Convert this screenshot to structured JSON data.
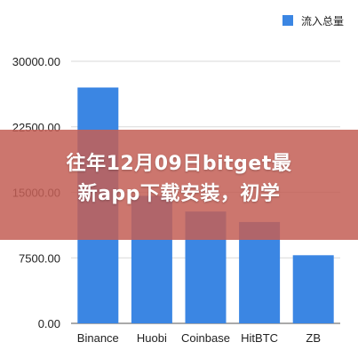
{
  "chart_data": {
    "type": "bar",
    "categories": [
      "Binance",
      "Huobi",
      "Coinbase",
      "HitBTC",
      "ZB"
    ],
    "series": [
      {
        "name": "流入总量",
        "values": [
          27000,
          14600,
          12800,
          11600,
          7800
        ]
      }
    ],
    "yticks": [
      "0.00",
      "7500.00",
      "15000.00",
      "22500.00",
      "30000.00"
    ],
    "ylim": [
      0,
      30000
    ],
    "grid": true,
    "legend_position": "top-right",
    "colors": {
      "bar": "#3b86e3",
      "grid": "#d9d9d9",
      "axis": "#555555"
    }
  },
  "overlay": {
    "line1": "往年12月09日bitget最",
    "line2": "新app下载安装，初学",
    "background": "#c46056"
  }
}
